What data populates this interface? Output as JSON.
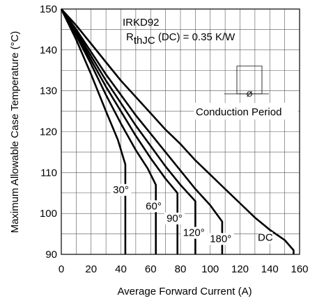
{
  "chart_data": {
    "type": "line",
    "title": "",
    "xlabel": "Average Forward Current (A)",
    "ylabel": "Maximum Allowable Case Temperature (°C)",
    "xlim": [
      0,
      160
    ],
    "ylim": [
      90,
      150
    ],
    "xticks": [
      0,
      20,
      40,
      60,
      80,
      100,
      120,
      140,
      160
    ],
    "yticks": [
      90,
      100,
      110,
      120,
      130,
      140,
      150
    ],
    "grid": true,
    "device": "IRKD92",
    "rth_label": "R",
    "rth_sub": "thJC",
    "rth_rest": " (DC) = 0.35 K/W",
    "inset_label": "Conduction Period",
    "inset_symbol": "Ø",
    "series": [
      {
        "name": "30°",
        "points": [
          [
            0,
            150
          ],
          [
            10,
            142.5
          ],
          [
            20,
            134
          ],
          [
            30,
            125
          ],
          [
            38,
            118
          ],
          [
            43,
            112
          ],
          [
            43,
            90
          ]
        ],
        "label_at": [
          40,
          105
        ]
      },
      {
        "name": "60°",
        "points": [
          [
            0,
            150
          ],
          [
            10,
            143.5
          ],
          [
            20,
            136.5
          ],
          [
            30,
            129
          ],
          [
            40,
            122
          ],
          [
            50,
            115.5
          ],
          [
            58,
            111
          ],
          [
            63.5,
            107
          ],
          [
            63.5,
            90
          ]
        ],
        "label_at": [
          62,
          101
        ]
      },
      {
        "name": "90°",
        "points": [
          [
            0,
            150
          ],
          [
            10,
            144
          ],
          [
            20,
            137.5
          ],
          [
            30,
            131
          ],
          [
            40,
            125
          ],
          [
            50,
            119
          ],
          [
            60,
            113.5
          ],
          [
            70,
            108.5
          ],
          [
            78,
            105
          ],
          [
            78,
            90
          ]
        ],
        "label_at": [
          76,
          98
        ]
      },
      {
        "name": "120°",
        "points": [
          [
            0,
            150
          ],
          [
            10,
            144.5
          ],
          [
            20,
            138.5
          ],
          [
            30,
            132.5
          ],
          [
            40,
            127
          ],
          [
            50,
            121.5
          ],
          [
            60,
            116.5
          ],
          [
            70,
            111.5
          ],
          [
            80,
            107
          ],
          [
            90,
            103
          ],
          [
            90,
            90
          ]
        ],
        "label_at": [
          89,
          94.5
        ]
      },
      {
        "name": "180°",
        "points": [
          [
            0,
            150
          ],
          [
            10,
            145
          ],
          [
            20,
            139.5
          ],
          [
            30,
            134
          ],
          [
            40,
            129
          ],
          [
            50,
            124
          ],
          [
            60,
            119.5
          ],
          [
            70,
            115
          ],
          [
            80,
            110.5
          ],
          [
            90,
            106
          ],
          [
            100,
            102
          ],
          [
            108,
            98
          ],
          [
            108,
            90
          ]
        ],
        "label_at": [
          107,
          93
        ]
      },
      {
        "name": "DC",
        "points": [
          [
            0,
            150
          ],
          [
            10,
            146
          ],
          [
            20,
            141.5
          ],
          [
            30,
            137
          ],
          [
            40,
            132.5
          ],
          [
            50,
            128.5
          ],
          [
            60,
            124.5
          ],
          [
            70,
            120.5
          ],
          [
            80,
            117
          ],
          [
            90,
            113
          ],
          [
            100,
            109.5
          ],
          [
            110,
            106
          ],
          [
            120,
            102.5
          ],
          [
            130,
            99
          ],
          [
            140,
            96
          ],
          [
            150,
            93.5
          ],
          [
            156,
            91
          ],
          [
            156,
            90
          ]
        ],
        "label_at": [
          137,
          93.3
        ]
      }
    ]
  }
}
